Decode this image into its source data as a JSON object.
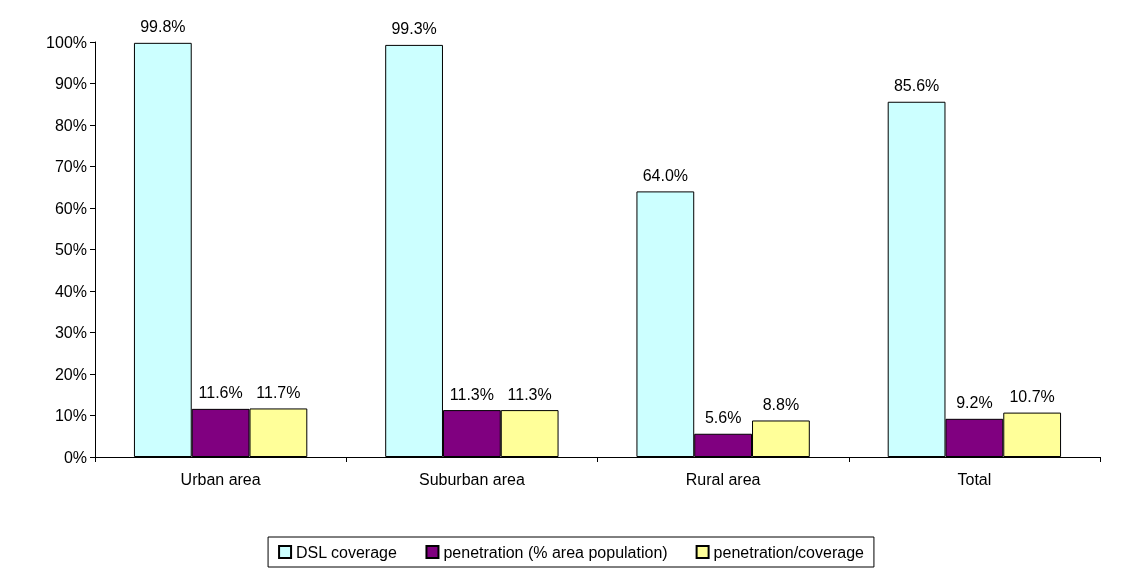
{
  "chart_data": {
    "type": "bar",
    "categories": [
      "Urban area",
      "Suburban area",
      "Rural area",
      "Total"
    ],
    "series": [
      {
        "name": "DSL coverage",
        "color": "#ccffff",
        "values": [
          99.8,
          99.3,
          64.0,
          85.6
        ],
        "value_labels": [
          "99.8%",
          "99.3%",
          "64.0%",
          "85.6%"
        ]
      },
      {
        "name": "penetration (% area population)",
        "color": "#800080",
        "values": [
          11.6,
          11.3,
          5.6,
          9.2
        ],
        "value_labels": [
          "11.6%",
          "11.3%",
          "5.6%",
          "9.2%"
        ]
      },
      {
        "name": "penetration/coverage",
        "color": "#ffff99",
        "values": [
          11.7,
          11.3,
          8.8,
          10.7
        ],
        "value_labels": [
          "11.7%",
          "11.3%",
          "8.8%",
          "10.7%"
        ]
      }
    ],
    "ylim": [
      0,
      100
    ],
    "yticks": [
      {
        "value": 0,
        "label": "0%"
      },
      {
        "value": 10,
        "label": "10%"
      },
      {
        "value": 20,
        "label": "20%"
      },
      {
        "value": 30,
        "label": "30%"
      },
      {
        "value": 40,
        "label": "40%"
      },
      {
        "value": 50,
        "label": "50%"
      },
      {
        "value": 60,
        "label": "60%"
      },
      {
        "value": 70,
        "label": "70%"
      },
      {
        "value": 80,
        "label": "80%"
      },
      {
        "value": 90,
        "label": "90%"
      },
      {
        "value": 100,
        "label": "100%"
      }
    ],
    "grid": false,
    "legend": "bottom"
  }
}
